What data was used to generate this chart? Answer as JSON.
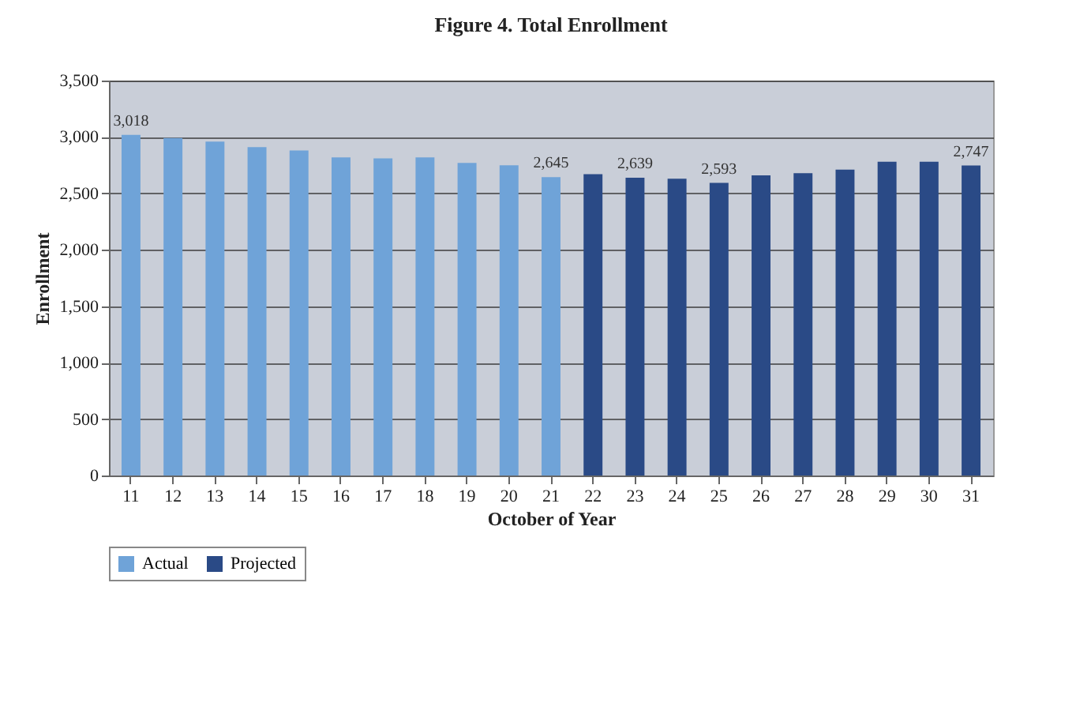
{
  "chart_data": {
    "type": "bar",
    "title": "Figure 4. Total Enrollment",
    "xlabel": "October of Year",
    "ylabel": "Enrollment",
    "categories": [
      "11",
      "12",
      "13",
      "14",
      "15",
      "16",
      "17",
      "18",
      "19",
      "20",
      "21",
      "22",
      "23",
      "24",
      "25",
      "26",
      "27",
      "28",
      "29",
      "30",
      "31"
    ],
    "series": [
      {
        "name": "Actual",
        "color": "#6fa3d8",
        "values": [
          3018,
          2990,
          2960,
          2910,
          2880,
          2820,
          2810,
          2820,
          2770,
          2750,
          2645,
          null,
          null,
          null,
          null,
          null,
          null,
          null,
          null,
          null,
          null
        ],
        "value_labels": [
          "3,018",
          null,
          null,
          null,
          null,
          null,
          null,
          null,
          null,
          null,
          "2,645",
          null,
          null,
          null,
          null,
          null,
          null,
          null,
          null,
          null,
          null
        ]
      },
      {
        "name": "Projected",
        "color": "#2a4a86",
        "values": [
          null,
          null,
          null,
          null,
          null,
          null,
          null,
          null,
          null,
          null,
          null,
          2670,
          2639,
          2630,
          2593,
          2660,
          2680,
          2710,
          2780,
          2780,
          2747
        ],
        "value_labels": [
          null,
          null,
          null,
          null,
          null,
          null,
          null,
          null,
          null,
          null,
          null,
          null,
          "2,639",
          null,
          "2,593",
          null,
          null,
          null,
          null,
          null,
          "2,747"
        ]
      }
    ],
    "ylim": [
      0,
      3500
    ],
    "yticks": [
      {
        "value": 0,
        "label": "0"
      },
      {
        "value": 500,
        "label": "500"
      },
      {
        "value": 1000,
        "label": "1,000"
      },
      {
        "value": 1500,
        "label": "1,500"
      },
      {
        "value": 2000,
        "label": "2,000"
      },
      {
        "value": 2500,
        "label": "2,500"
      },
      {
        "value": 3000,
        "label": "3,000"
      },
      {
        "value": 3500,
        "label": "3,500"
      }
    ],
    "grid": "y",
    "legend": "bottom"
  }
}
